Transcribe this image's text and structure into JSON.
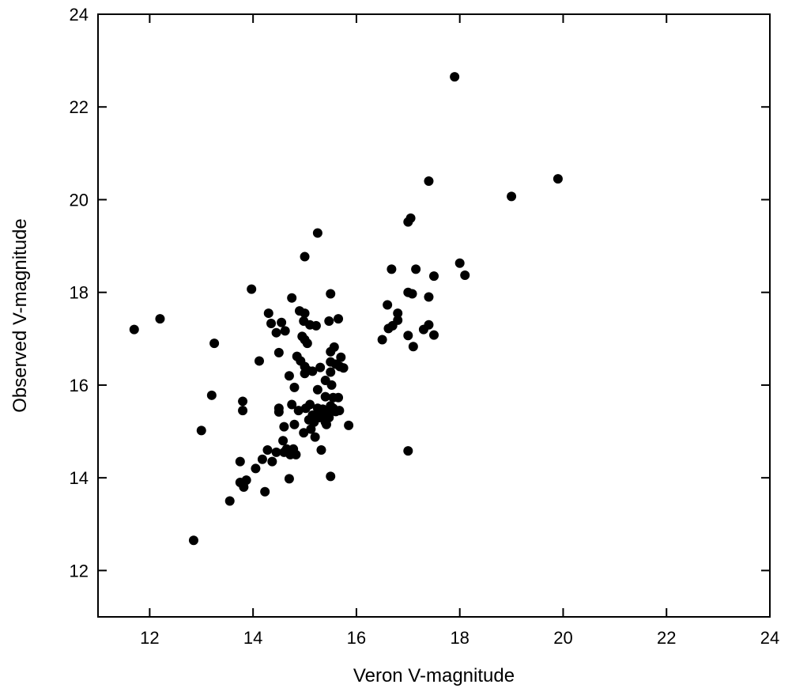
{
  "chart_data": {
    "type": "scatter",
    "title": "",
    "xlabel": "Veron V-magnitude",
    "ylabel": "Observed V-magnitude",
    "xlim": [
      11,
      24
    ],
    "ylim": [
      11,
      24
    ],
    "xticks": [
      12,
      14,
      16,
      18,
      20,
      22,
      24
    ],
    "yticks": [
      12,
      14,
      16,
      18,
      20,
      22,
      24
    ],
    "grid": false,
    "legend": "none",
    "marker_color": "#000000",
    "series": [
      {
        "points": [
          [
            11.7,
            17.2
          ],
          [
            12.2,
            17.43
          ],
          [
            12.85,
            12.65
          ],
          [
            13.0,
            15.02
          ],
          [
            13.2,
            15.78
          ],
          [
            13.25,
            16.9
          ],
          [
            13.55,
            13.5
          ],
          [
            13.75,
            14.35
          ],
          [
            13.75,
            13.9
          ],
          [
            13.8,
            15.65
          ],
          [
            13.8,
            15.45
          ],
          [
            13.82,
            13.8
          ],
          [
            13.87,
            13.95
          ],
          [
            13.97,
            18.07
          ],
          [
            14.05,
            14.2
          ],
          [
            14.12,
            16.52
          ],
          [
            14.18,
            14.4
          ],
          [
            14.23,
            13.7
          ],
          [
            14.28,
            14.6
          ],
          [
            14.3,
            17.55
          ],
          [
            14.35,
            17.33
          ],
          [
            14.37,
            14.35
          ],
          [
            14.45,
            14.55
          ],
          [
            14.45,
            17.13
          ],
          [
            14.5,
            15.5
          ],
          [
            14.5,
            15.42
          ],
          [
            14.5,
            16.7
          ],
          [
            14.55,
            17.35
          ],
          [
            14.58,
            14.8
          ],
          [
            14.6,
            15.1
          ],
          [
            14.6,
            14.55
          ],
          [
            14.62,
            17.17
          ],
          [
            14.65,
            14.62
          ],
          [
            14.7,
            16.2
          ],
          [
            14.7,
            13.98
          ],
          [
            14.72,
            14.5
          ],
          [
            14.75,
            15.58
          ],
          [
            14.75,
            17.88
          ],
          [
            14.78,
            14.62
          ],
          [
            14.8,
            15.95
          ],
          [
            14.8,
            15.15
          ],
          [
            14.83,
            14.5
          ],
          [
            14.85,
            16.62
          ],
          [
            14.88,
            15.45
          ],
          [
            14.9,
            17.6
          ],
          [
            14.92,
            16.52
          ],
          [
            14.95,
            17.05
          ],
          [
            14.98,
            17.38
          ],
          [
            14.98,
            14.97
          ],
          [
            15.0,
            18.77
          ],
          [
            15.0,
            17.55
          ],
          [
            15.0,
            16.98
          ],
          [
            15.0,
            16.4
          ],
          [
            15.0,
            16.25
          ],
          [
            15.02,
            15.5
          ],
          [
            15.05,
            16.9
          ],
          [
            15.05,
            16.32
          ],
          [
            15.08,
            15.25
          ],
          [
            15.1,
            15.58
          ],
          [
            15.1,
            17.3
          ],
          [
            15.12,
            15.05
          ],
          [
            15.15,
            16.3
          ],
          [
            15.15,
            15.35
          ],
          [
            15.18,
            15.2
          ],
          [
            15.2,
            14.88
          ],
          [
            15.22,
            17.28
          ],
          [
            15.25,
            19.28
          ],
          [
            15.25,
            15.9
          ],
          [
            15.25,
            15.5
          ],
          [
            15.28,
            15.3
          ],
          [
            15.3,
            16.38
          ],
          [
            15.3,
            15.42
          ],
          [
            15.32,
            14.6
          ],
          [
            15.35,
            15.48
          ],
          [
            15.37,
            15.35
          ],
          [
            15.4,
            16.1
          ],
          [
            15.4,
            15.75
          ],
          [
            15.4,
            15.2
          ],
          [
            15.42,
            15.15
          ],
          [
            15.45,
            15.45
          ],
          [
            15.47,
            15.3
          ],
          [
            15.47,
            17.38
          ],
          [
            15.5,
            17.97
          ],
          [
            15.5,
            16.72
          ],
          [
            15.5,
            16.5
          ],
          [
            15.5,
            16.28
          ],
          [
            15.52,
            16.0
          ],
          [
            15.5,
            15.55
          ],
          [
            15.5,
            14.03
          ],
          [
            15.55,
            15.73
          ],
          [
            15.55,
            15.5
          ],
          [
            15.57,
            16.82
          ],
          [
            15.6,
            16.45
          ],
          [
            15.6,
            15.43
          ],
          [
            15.65,
            17.43
          ],
          [
            15.65,
            15.73
          ],
          [
            15.67,
            15.45
          ],
          [
            15.68,
            16.4
          ],
          [
            15.7,
            16.6
          ],
          [
            15.75,
            16.37
          ],
          [
            15.85,
            15.13
          ],
          [
            16.5,
            16.98
          ],
          [
            16.6,
            17.73
          ],
          [
            16.62,
            17.22
          ],
          [
            16.68,
            18.5
          ],
          [
            16.7,
            17.28
          ],
          [
            16.8,
            17.55
          ],
          [
            16.8,
            17.4
          ],
          [
            17.0,
            19.52
          ],
          [
            17.0,
            18.0
          ],
          [
            17.0,
            17.07
          ],
          [
            17.0,
            14.58
          ],
          [
            17.05,
            19.6
          ],
          [
            17.08,
            17.97
          ],
          [
            17.1,
            16.83
          ],
          [
            17.15,
            18.5
          ],
          [
            17.3,
            17.2
          ],
          [
            17.4,
            20.4
          ],
          [
            17.4,
            17.9
          ],
          [
            17.4,
            17.3
          ],
          [
            17.5,
            18.35
          ],
          [
            17.5,
            17.08
          ],
          [
            17.9,
            22.65
          ],
          [
            18.0,
            18.63
          ],
          [
            18.1,
            18.37
          ],
          [
            19.0,
            20.07
          ],
          [
            19.9,
            20.45
          ]
        ]
      }
    ]
  }
}
